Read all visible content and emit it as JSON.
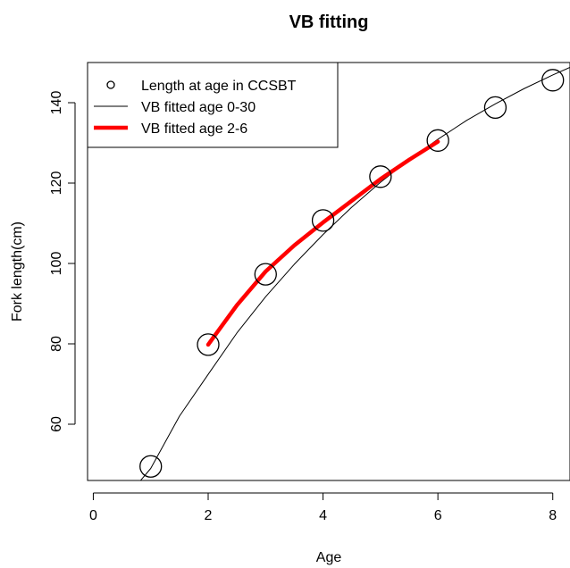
{
  "chart_data": {
    "type": "scatter",
    "title": "VB fitting",
    "xlabel": "Age",
    "ylabel": "Fork length(cm)",
    "xlim": [
      -0.1,
      8.3
    ],
    "ylim": [
      46,
      150
    ],
    "x_ticks": [
      0,
      2,
      4,
      6,
      8
    ],
    "y_ticks": [
      60,
      80,
      100,
      120,
      140
    ],
    "grid": false,
    "legend_position": "top-left",
    "series": [
      {
        "name": "Length at age in CCSBT",
        "type": "scatter",
        "marker": "open-circle",
        "color": "#000000",
        "x": [
          1,
          2,
          3,
          4,
          5,
          6,
          7,
          8
        ],
        "y": [
          49.5,
          79.8,
          97.3,
          110.7,
          121.6,
          130.6,
          138.8,
          145.6
        ]
      },
      {
        "name": "VB fitted age 0-30",
        "type": "line",
        "color": "#000000",
        "width": "thin",
        "x": [
          0.5,
          1,
          1.5,
          2,
          2.5,
          3,
          3.5,
          4,
          4.5,
          5,
          5.5,
          6,
          6.5,
          7,
          7.5,
          8,
          8.3
        ],
        "y": [
          40.5,
          49.0,
          62.0,
          72.4,
          82.7,
          91.7,
          99.8,
          107.2,
          114.0,
          120.2,
          125.8,
          130.9,
          135.6,
          139.7,
          143.5,
          146.9,
          148.8
        ]
      },
      {
        "name": "VB fitted age 2-6",
        "type": "line",
        "color": "#ff0000",
        "width": "thick",
        "x": [
          2,
          2.5,
          3,
          3.5,
          4,
          4.5,
          5,
          5.5,
          6
        ],
        "y": [
          79.8,
          89.6,
          98.0,
          104.5,
          110.2,
          115.6,
          121.0,
          125.8,
          130.3
        ]
      }
    ]
  }
}
